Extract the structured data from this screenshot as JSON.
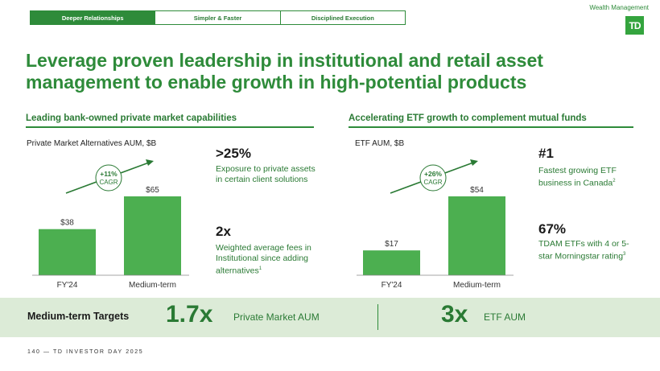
{
  "tabs": [
    {
      "label": "Deeper Relationships",
      "active": true
    },
    {
      "label": "Simpler & Faster",
      "active": false
    },
    {
      "label": "Disciplined Execution",
      "active": false
    }
  ],
  "brand": {
    "wealth_management": "Wealth Management",
    "logo_text": "TD",
    "logo_icon": "td-shield-icon",
    "accent": "#2e8b3a"
  },
  "title": "Leverage proven leadership in institutional and retail asset management to enable growth in high-potential products",
  "left": {
    "heading": "Leading bank-owned private market capabilities",
    "chart_label": "Private Market Alternatives AUM, $B",
    "stats": [
      {
        "big": ">25%",
        "text": "Exposure to private assets in certain client solutions",
        "sup": ""
      },
      {
        "big": "2x",
        "text": "Weighted average fees in Institutional since adding alternatives",
        "sup": "1"
      }
    ]
  },
  "right": {
    "heading": "Accelerating ETF growth to complement mutual funds",
    "chart_label": "ETF AUM, $B",
    "stats": [
      {
        "big": "#1",
        "text": "Fastest growing ETF business in Canada",
        "sup": "2"
      },
      {
        "big": "67%",
        "text": "TDAM ETFs with 4 or 5-star Morningstar rating",
        "sup": "3"
      }
    ]
  },
  "chart_data": [
    {
      "type": "bar",
      "title": "Private Market Alternatives AUM, $B",
      "categories": [
        "FY'24",
        "Medium-term"
      ],
      "values": [
        38,
        65
      ],
      "value_labels": [
        "$38",
        "$65"
      ],
      "annotation": {
        "line1": "+11%",
        "line2": "CAGR"
      },
      "ylim": [
        0,
        65
      ]
    },
    {
      "type": "bar",
      "title": "ETF AUM, $B",
      "categories": [
        "FY'24",
        "Medium-term"
      ],
      "values": [
        17,
        54
      ],
      "value_labels": [
        "$17",
        "$54"
      ],
      "annotation": {
        "line1": "+26%",
        "line2": "CAGR"
      },
      "ylim": [
        0,
        54
      ]
    }
  ],
  "targets": {
    "heading": "Medium-term Targets",
    "items": [
      {
        "value": "1.7x",
        "label": "Private Market AUM"
      },
      {
        "value": "3x",
        "label": "ETF AUM"
      }
    ]
  },
  "footer": "140 — TD INVESTOR DAY 2025"
}
